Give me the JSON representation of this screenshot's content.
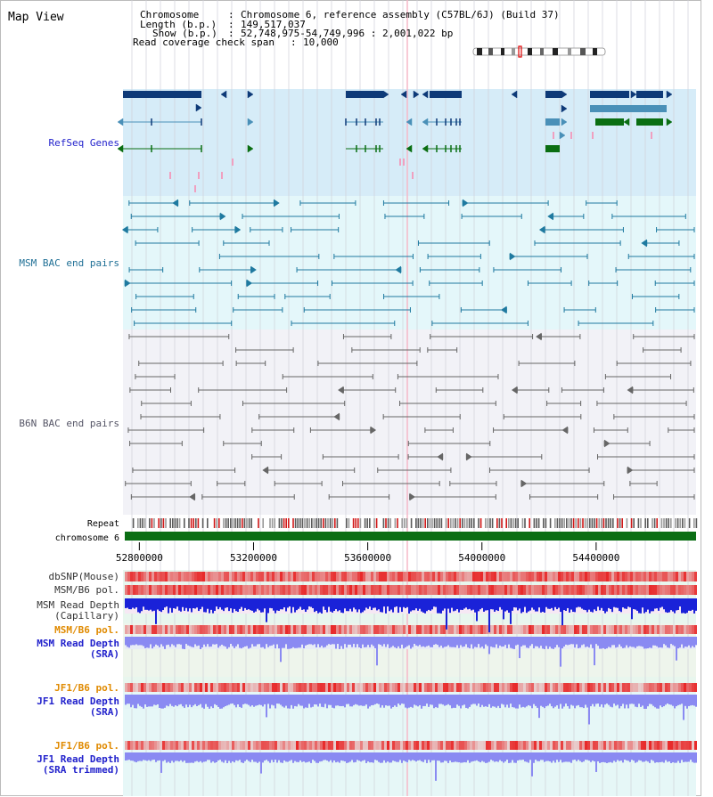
{
  "page": {
    "title": "Map View",
    "info": {
      "chromosome_label": "Chromosome",
      "chromosome_value": "Chromosome 6, reference assembly (C57BL/6J) (Build 37)",
      "length_label": "Length (b.p.)",
      "length_value": "149,517,037",
      "show_label": "Show (b.p.)",
      "show_value": "52,748,975-54,749,996 : 2,001,022 bp",
      "coverage_label": "Read coverage check span",
      "coverage_value": "10,000"
    }
  },
  "colors": {
    "refseq_bg": "#d6ecf8",
    "bac_msm_bg": "#e4f7fa",
    "bac_b6n_bg": "#f2f2f7",
    "lower_bg": "#e8f6ee",
    "refseq_dark": "#0e3a78",
    "refseq_mid": "#4a90b8",
    "refseq_green": "#0a6e12",
    "msm_bac": "#1f7aa0",
    "b6n_bac": "#666666",
    "chromosome": "#0b6e14",
    "snp_red": "#e84040",
    "depth_blue": "#1a22d8",
    "depth_light_blue": "#8a8af2",
    "label_blue": "#2222cc",
    "label_orange": "#e08a00",
    "grid": "#cfd0d8",
    "highlight": "#f5b8c8"
  },
  "tracks": {
    "refseq_genes": "RefSeq Genes",
    "msm_bac": "MSM BAC end pairs",
    "b6n_bac": "B6N BAC end pairs",
    "repeat": "Repeat",
    "chromosome": "chromosome 6",
    "dbsnp": "dbSNP(Mouse)",
    "msm_b6_pol_1": "MSM/B6 pol.",
    "msm_depth_cap_1": "MSM Read Depth",
    "msm_depth_cap_2": "(Capillary)",
    "msm_b6_pol_2": "MSM/B6 pol.",
    "msm_depth_sra_1": "MSM Read Depth",
    "msm_depth_sra_2": "(SRA)",
    "jf1_b6_pol_1": "JF1/B6 pol.",
    "jf1_depth_sra_1": "JF1 Read Depth",
    "jf1_depth_sra_2": "(SRA)",
    "jf1_b6_pol_2": "JF1/B6 pol.",
    "jf1_depth_trim_1": "JF1 Read Depth",
    "jf1_depth_trim_2": "(SRA trimmed)"
  },
  "axis": {
    "start_bp": 52748975,
    "end_bp": 54749996,
    "ticks": [
      {
        "value": 52800000,
        "label": "52800000"
      },
      {
        "value": 53200000,
        "label": "53200000"
      },
      {
        "value": 53600000,
        "label": "53600000"
      },
      {
        "value": 54000000,
        "label": "54000000"
      },
      {
        "value": 54400000,
        "label": "54400000"
      }
    ]
  }
}
